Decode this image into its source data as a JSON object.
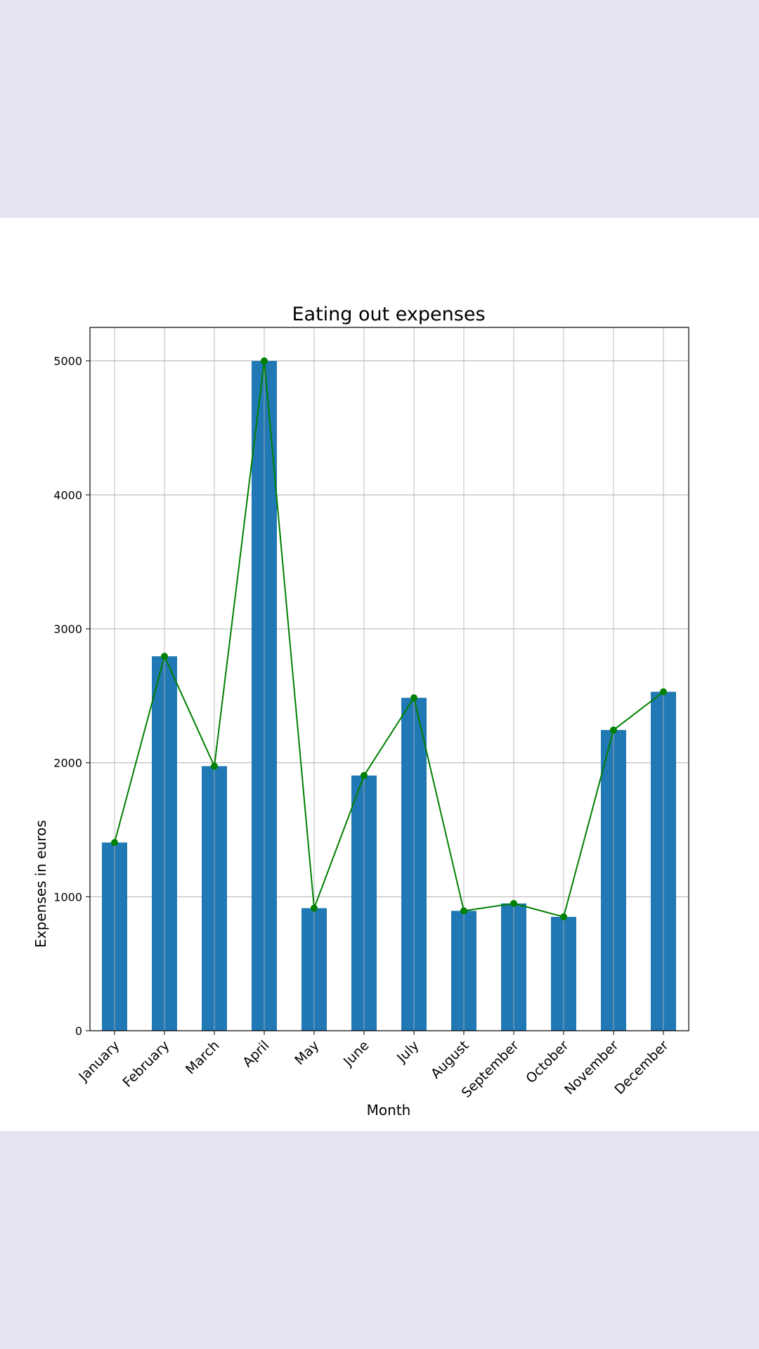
{
  "chart_data": {
    "type": "bar",
    "title": "Eating out expenses",
    "xlabel": "Month",
    "ylabel": "Expenses in euros",
    "categories": [
      "January",
      "February",
      "March",
      "April",
      "May",
      "June",
      "July",
      "August",
      "September",
      "October",
      "November",
      "December"
    ],
    "values": [
      1405,
      2795,
      1975,
      5000,
      915,
      1905,
      2485,
      895,
      950,
      850,
      2245,
      2530
    ],
    "line_series": {
      "values": [
        1405,
        2795,
        1975,
        5000,
        915,
        1905,
        2485,
        895,
        950,
        850,
        2245,
        2530
      ]
    },
    "ylim": [
      0,
      5250
    ],
    "yticks": [
      "0",
      "1000",
      "2000",
      "3000",
      "4000",
      "5000"
    ],
    "grid": true,
    "colors": {
      "bar": "#2078b4",
      "line": "#008000",
      "grid": "#b0b0b0",
      "page_background": "#e3e3f1",
      "panel_background": "#ffffff"
    }
  }
}
